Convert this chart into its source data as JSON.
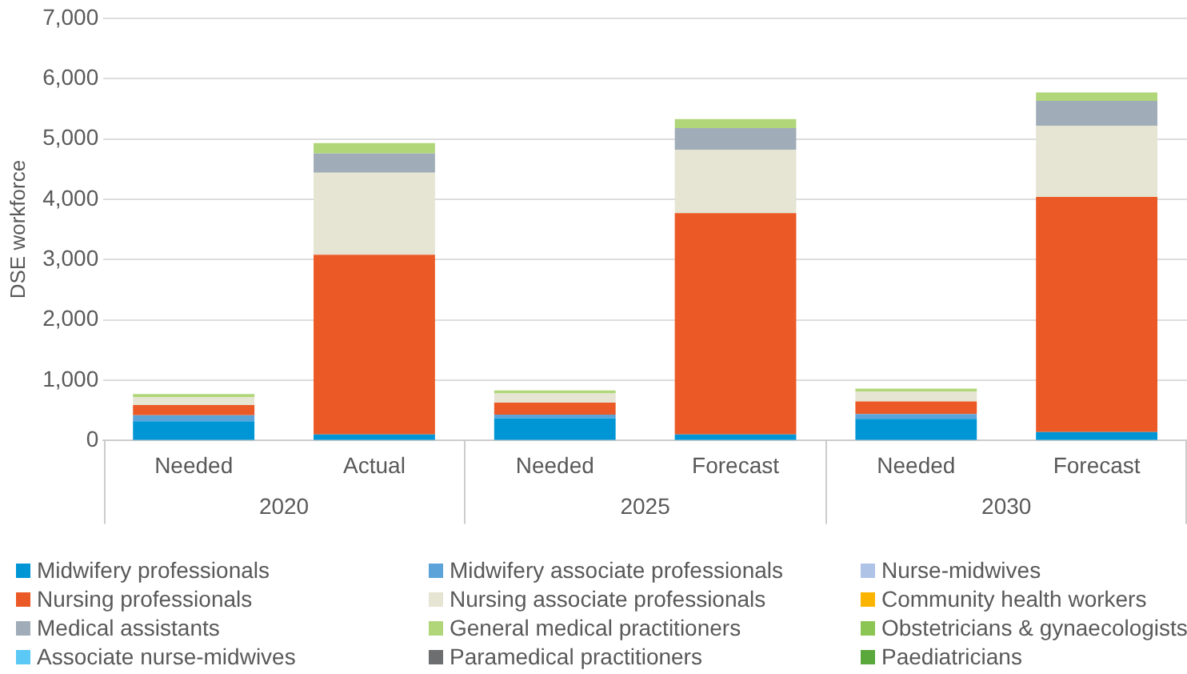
{
  "chart_data": {
    "type": "bar",
    "stacked": true,
    "ylabel": "DSE workforce",
    "categories": [
      "Needed",
      "Actual",
      "Needed",
      "Forecast",
      "Needed",
      "Forecast"
    ],
    "annotations": [
      "2020",
      "2025",
      "2030"
    ],
    "series": [
      {
        "name": "Midwifery professionals",
        "color": "#0096d6",
        "values": [
          320,
          100,
          370,
          100,
          360,
          140
        ]
      },
      {
        "name": "Midwifery associate professionals",
        "color": "#5ba3d9",
        "values": [
          100,
          0,
          60,
          0,
          80,
          0
        ]
      },
      {
        "name": "Nurse-midwives",
        "color": "#aec3e6",
        "values": [
          0,
          0,
          0,
          0,
          0,
          0
        ]
      },
      {
        "name": "Nursing professionals",
        "color": "#eb5a26",
        "values": [
          170,
          2980,
          200,
          3670,
          210,
          3900
        ]
      },
      {
        "name": "Nursing associate professionals",
        "color": "#e6e4d2",
        "values": [
          130,
          1360,
          150,
          1050,
          160,
          1180
        ]
      },
      {
        "name": "Community health workers",
        "color": "#fbb400",
        "values": [
          0,
          0,
          0,
          0,
          0,
          0
        ]
      },
      {
        "name": "Medical assistants",
        "color": "#a0adb8",
        "values": [
          0,
          320,
          0,
          360,
          0,
          410
        ]
      },
      {
        "name": "General medical practitioners",
        "color": "#b1d67a",
        "values": [
          50,
          170,
          50,
          150,
          50,
          140
        ]
      },
      {
        "name": "Obstetricians & gynaecologists",
        "color": "#8dc554",
        "values": [
          0,
          0,
          0,
          0,
          0,
          0
        ]
      },
      {
        "name": "Associate nurse-midwives",
        "color": "#5bc8f5",
        "values": [
          0,
          0,
          0,
          0,
          0,
          0
        ]
      },
      {
        "name": "Paramedical practitioners",
        "color": "#6d6e70",
        "values": [
          0,
          0,
          0,
          0,
          0,
          0
        ]
      },
      {
        "name": "Paediatricians",
        "color": "#5aa83c",
        "values": [
          0,
          0,
          0,
          0,
          0,
          0
        ]
      }
    ],
    "ylim": [
      0,
      7000
    ],
    "yticks": [
      0,
      {
        "value": 1000,
        "label": "1,000"
      },
      {
        "value": 2000,
        "label": "2,000"
      },
      {
        "value": 3000,
        "label": "3,000"
      },
      {
        "value": 4000,
        "label": "4,000"
      },
      {
        "value": 5000,
        "label": "5,000"
      },
      {
        "value": 6000,
        "label": "6,000"
      },
      {
        "value": 7000,
        "label": "7,000"
      }
    ],
    "grid": "y",
    "legend": "bottom"
  }
}
